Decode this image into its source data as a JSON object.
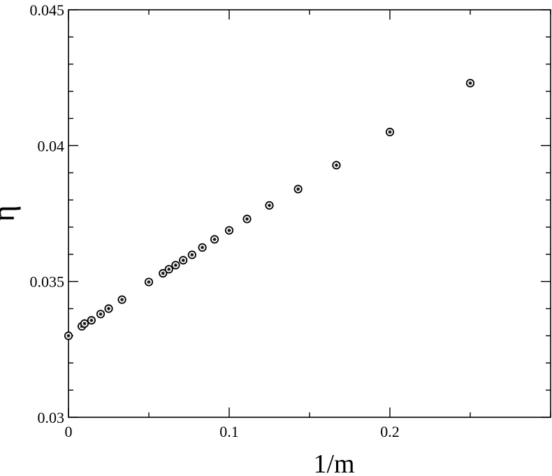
{
  "chart_data": {
    "type": "scatter",
    "title": "",
    "xlabel": "1/m",
    "ylabel": "η",
    "xlim": [
      0,
      0.3
    ],
    "ylim": [
      0.03,
      0.045
    ],
    "grid": false,
    "legend": "none",
    "x_ticks": [
      0,
      0.1,
      0.2
    ],
    "x_tick_labels": [
      "0",
      "0.1",
      "0.2"
    ],
    "y_ticks": [
      0.03,
      0.035,
      0.04,
      0.045
    ],
    "y_tick_labels": [
      "0.03",
      "0.035",
      "0.04",
      "0.045"
    ],
    "marker_color": "#000000",
    "series": [
      {
        "x": [
          0,
          0.0083,
          0.01,
          0.0143,
          0.02,
          0.025,
          0.0333,
          0.05,
          0.0588,
          0.0625,
          0.0667,
          0.0714,
          0.0769,
          0.0833,
          0.0909,
          0.1,
          0.1111,
          0.125,
          0.1429,
          0.1667,
          0.2,
          0.25
        ],
        "y": [
          0.033,
          0.03335,
          0.03345,
          0.03357,
          0.0338,
          0.034,
          0.03433,
          0.03498,
          0.0353,
          0.03545,
          0.0356,
          0.03578,
          0.03598,
          0.03625,
          0.03655,
          0.03688,
          0.0373,
          0.0378,
          0.0384,
          0.03928,
          0.0405,
          0.0423
        ]
      }
    ]
  }
}
